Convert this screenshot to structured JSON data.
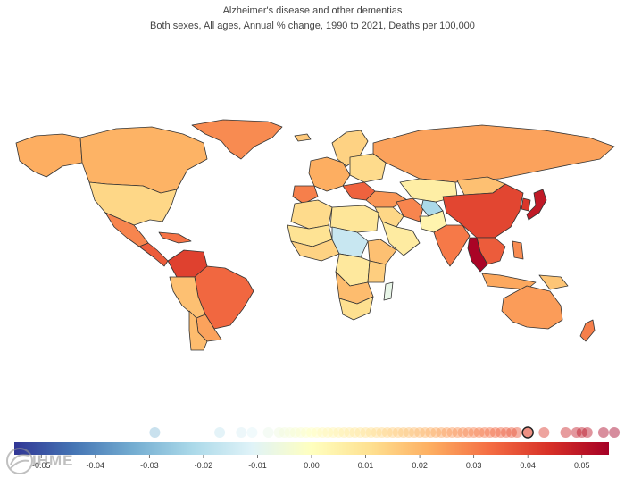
{
  "header": {
    "title": "Alzheimer's disease and other dementias",
    "subtitle": "Both sexes, All ages, Annual % change, 1990 to 2021, Deaths per 100,000"
  },
  "legend": {
    "min": -0.055,
    "max": 0.055,
    "ticks": [
      -0.05,
      -0.04,
      -0.03,
      -0.02,
      -0.01,
      0.0,
      0.01,
      0.02,
      0.03,
      0.04,
      0.05
    ],
    "tick_labels": [
      "-0.05",
      "-0.04",
      "-0.03",
      "-0.02",
      "-0.01",
      "0.00",
      "0.01",
      "0.02",
      "0.03",
      "0.04",
      "0.05"
    ],
    "colors": [
      "#313695",
      "#4575b4",
      "#74add1",
      "#abd9e9",
      "#e0f3f8",
      "#ffffbf",
      "#fee090",
      "#fdae61",
      "#f46d43",
      "#d73027",
      "#a50026"
    ],
    "distribution_values": [
      -0.029,
      -0.017,
      -0.013,
      -0.011,
      -0.008,
      -0.006,
      -0.005,
      -0.004,
      -0.003,
      -0.002,
      -0.001,
      0.0,
      0.001,
      0.002,
      0.003,
      0.004,
      0.005,
      0.006,
      0.007,
      0.008,
      0.009,
      0.01,
      0.011,
      0.012,
      0.013,
      0.014,
      0.015,
      0.016,
      0.017,
      0.018,
      0.019,
      0.02,
      0.021,
      0.022,
      0.023,
      0.024,
      0.025,
      0.026,
      0.027,
      0.028,
      0.029,
      0.03,
      0.031,
      0.032,
      0.033,
      0.034,
      0.035,
      0.036,
      0.037,
      0.038,
      0.043,
      0.047,
      0.049,
      0.05,
      0.051,
      0.054,
      0.056
    ],
    "highlighted_value": 0.04
  },
  "logo": {
    "text": "IHME"
  },
  "regions": [
    {
      "name": "greenland",
      "value": 0.028
    },
    {
      "name": "canada",
      "value": 0.021
    },
    {
      "name": "alaska",
      "value": 0.022
    },
    {
      "name": "united-states",
      "value": 0.013
    },
    {
      "name": "mexico",
      "value": 0.029
    },
    {
      "name": "central-america",
      "value": 0.036
    },
    {
      "name": "caribbean",
      "value": 0.032
    },
    {
      "name": "venezuela-colombia",
      "value": 0.041
    },
    {
      "name": "brazil",
      "value": 0.034
    },
    {
      "name": "andes",
      "value": 0.018
    },
    {
      "name": "southern-cone",
      "value": 0.024
    },
    {
      "name": "patagonia",
      "value": 0.019
    },
    {
      "name": "iceland",
      "value": 0.016
    },
    {
      "name": "scandinavia",
      "value": 0.014
    },
    {
      "name": "western-europe",
      "value": 0.022
    },
    {
      "name": "iberia",
      "value": 0.03
    },
    {
      "name": "eastern-europe",
      "value": 0.012
    },
    {
      "name": "balkans",
      "value": 0.035
    },
    {
      "name": "russia",
      "value": 0.024
    },
    {
      "name": "central-asia",
      "value": 0.006
    },
    {
      "name": "caucasus-turkey",
      "value": 0.026
    },
    {
      "name": "middle-east",
      "value": 0.013
    },
    {
      "name": "arabia",
      "value": 0.007
    },
    {
      "name": "iran",
      "value": 0.029
    },
    {
      "name": "afghanistan",
      "value": -0.022
    },
    {
      "name": "pakistan",
      "value": 0.004
    },
    {
      "name": "india",
      "value": 0.031
    },
    {
      "name": "china",
      "value": 0.04
    },
    {
      "name": "mongolia",
      "value": 0.018
    },
    {
      "name": "korea",
      "value": 0.043
    },
    {
      "name": "japan",
      "value": 0.049
    },
    {
      "name": "southeast-asia",
      "value": 0.036
    },
    {
      "name": "thailand",
      "value": 0.054
    },
    {
      "name": "indonesia",
      "value": 0.023
    },
    {
      "name": "philippines",
      "value": 0.028
    },
    {
      "name": "papua",
      "value": 0.017
    },
    {
      "name": "australia",
      "value": 0.025
    },
    {
      "name": "new-zealand",
      "value": 0.03
    },
    {
      "name": "north-africa-west",
      "value": 0.012
    },
    {
      "name": "egypt-libya",
      "value": 0.009
    },
    {
      "name": "sahel",
      "value": 0.01
    },
    {
      "name": "west-africa",
      "value": 0.014
    },
    {
      "name": "sudan-chad",
      "value": -0.016
    },
    {
      "name": "horn-of-africa",
      "value": 0.018
    },
    {
      "name": "central-africa",
      "value": 0.008
    },
    {
      "name": "east-africa",
      "value": 0.015
    },
    {
      "name": "southern-africa",
      "value": 0.011
    },
    {
      "name": "angola-zambia",
      "value": 0.019
    },
    {
      "name": "madagascar",
      "value": -0.008
    }
  ]
}
